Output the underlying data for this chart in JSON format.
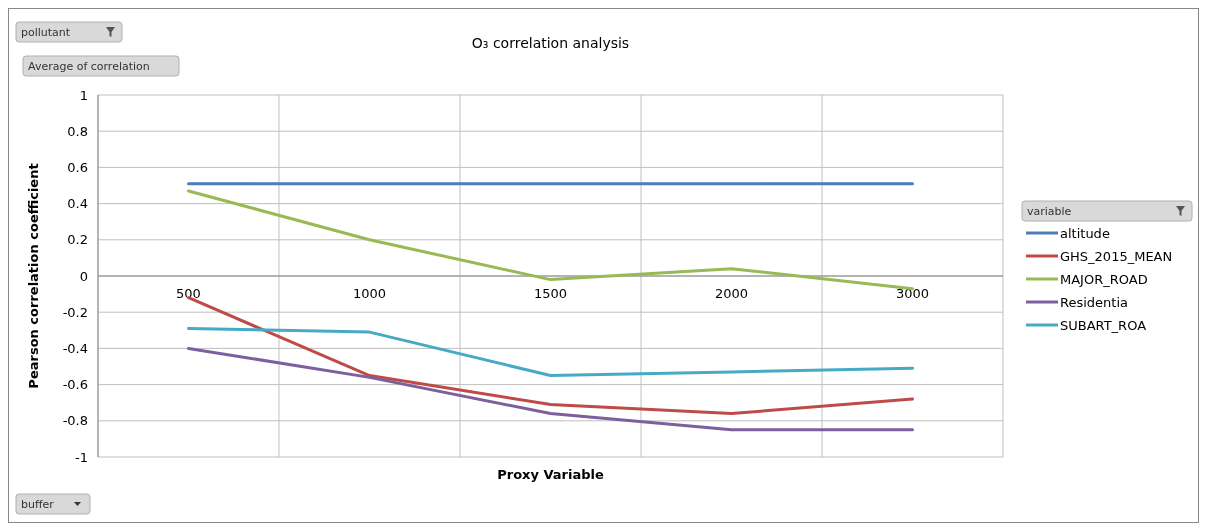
{
  "chart_data": {
    "type": "line",
    "title": "O₃ correlation analysis",
    "xlabel": "Proxy Variable",
    "ylabel": "Pearson correlation coefficient",
    "legend_title": "variable",
    "annotations": [
      "pollutant",
      "Average of correlation",
      "buffer"
    ],
    "categories": [
      "500",
      "1000",
      "1500",
      "2000",
      "3000"
    ],
    "series": [
      {
        "name": "altitude",
        "color": "#4a7ebb",
        "values": [
          0.51,
          0.51,
          0.51,
          0.51,
          0.51
        ]
      },
      {
        "name": "GHS_2015_MEAN",
        "color": "#be4b48",
        "values": [
          -0.12,
          -0.55,
          -0.71,
          -0.76,
          -0.68
        ]
      },
      {
        "name": "MAJOR_ROAD",
        "color": "#98b954",
        "values": [
          0.47,
          0.2,
          -0.02,
          0.04,
          -0.07
        ]
      },
      {
        "name": "Residentia",
        "color": "#7d5fa0",
        "values": [
          -0.4,
          -0.56,
          -0.76,
          -0.85,
          -0.85
        ]
      },
      {
        "name": "SUBART_ROA",
        "color": "#46aac5",
        "values": [
          -0.29,
          -0.31,
          -0.55,
          -0.53,
          -0.51
        ]
      }
    ],
    "ylim": [
      -1,
      1
    ],
    "yticks": [
      -1,
      -0.8,
      -0.6,
      -0.4,
      -0.2,
      0,
      0.2,
      0.4,
      0.6,
      0.8,
      1
    ],
    "grid": true,
    "legend": "right",
    "marker": "none",
    "line_style": "solid"
  }
}
